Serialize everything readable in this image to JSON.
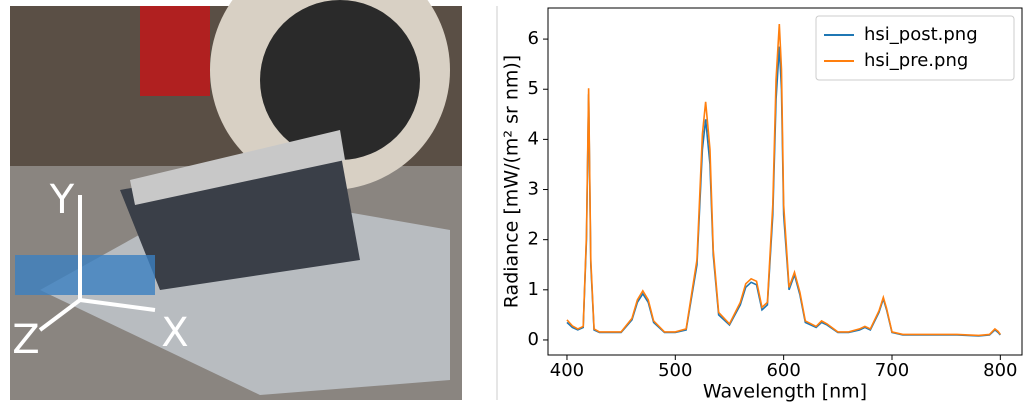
{
  "photo": {
    "axis_labels": [
      "Y",
      "Z",
      "X"
    ]
  },
  "chart_data": {
    "type": "line",
    "xlabel": "Wavelength [nm]",
    "ylabel": "Radiance [mW/(m² sr nm)]",
    "x": [
      400,
      405,
      410,
      415,
      418,
      420,
      422,
      425,
      430,
      440,
      450,
      460,
      465,
      470,
      475,
      480,
      490,
      500,
      510,
      520,
      525,
      528,
      532,
      535,
      540,
      550,
      560,
      565,
      570,
      575,
      580,
      585,
      590,
      593,
      596,
      598,
      600,
      605,
      610,
      615,
      620,
      630,
      635,
      640,
      650,
      660,
      670,
      675,
      680,
      688,
      692,
      695,
      700,
      710,
      720,
      740,
      760,
      780,
      790,
      795,
      798,
      800
    ],
    "series": [
      {
        "name": "hsi_post.png",
        "color": "#1f77b4",
        "values": [
          0.35,
          0.25,
          0.2,
          0.25,
          2.0,
          4.9,
          1.5,
          0.2,
          0.15,
          0.15,
          0.15,
          0.4,
          0.75,
          0.92,
          0.75,
          0.35,
          0.15,
          0.15,
          0.2,
          1.5,
          3.8,
          4.4,
          3.5,
          1.7,
          0.5,
          0.3,
          0.7,
          1.05,
          1.15,
          1.1,
          0.6,
          0.7,
          2.5,
          4.8,
          5.85,
          5.0,
          2.5,
          1.0,
          1.3,
          0.9,
          0.35,
          0.25,
          0.35,
          0.3,
          0.15,
          0.15,
          0.2,
          0.25,
          0.2,
          0.55,
          0.82,
          0.6,
          0.15,
          0.1,
          0.1,
          0.1,
          0.1,
          0.08,
          0.1,
          0.2,
          0.15,
          0.1
        ]
      },
      {
        "name": "hsi_pre.png",
        "color": "#ff7f0e",
        "values": [
          0.4,
          0.28,
          0.22,
          0.27,
          2.1,
          5.02,
          1.6,
          0.22,
          0.16,
          0.16,
          0.16,
          0.43,
          0.8,
          0.98,
          0.8,
          0.38,
          0.16,
          0.16,
          0.22,
          1.6,
          4.1,
          4.75,
          3.8,
          1.8,
          0.55,
          0.32,
          0.75,
          1.12,
          1.22,
          1.17,
          0.65,
          0.75,
          2.7,
          5.2,
          6.3,
          5.4,
          2.7,
          1.05,
          1.35,
          0.95,
          0.38,
          0.27,
          0.38,
          0.32,
          0.16,
          0.16,
          0.22,
          0.27,
          0.22,
          0.58,
          0.85,
          0.63,
          0.16,
          0.11,
          0.11,
          0.11,
          0.11,
          0.09,
          0.11,
          0.22,
          0.17,
          0.11
        ]
      }
    ],
    "xlim": [
      382.5,
      820
    ],
    "ylim": [
      -0.3,
      6.62
    ],
    "xticks": [
      400,
      500,
      600,
      700,
      800
    ],
    "yticks": [
      0,
      1,
      2,
      3,
      4,
      5,
      6
    ],
    "legend": "upper right"
  }
}
